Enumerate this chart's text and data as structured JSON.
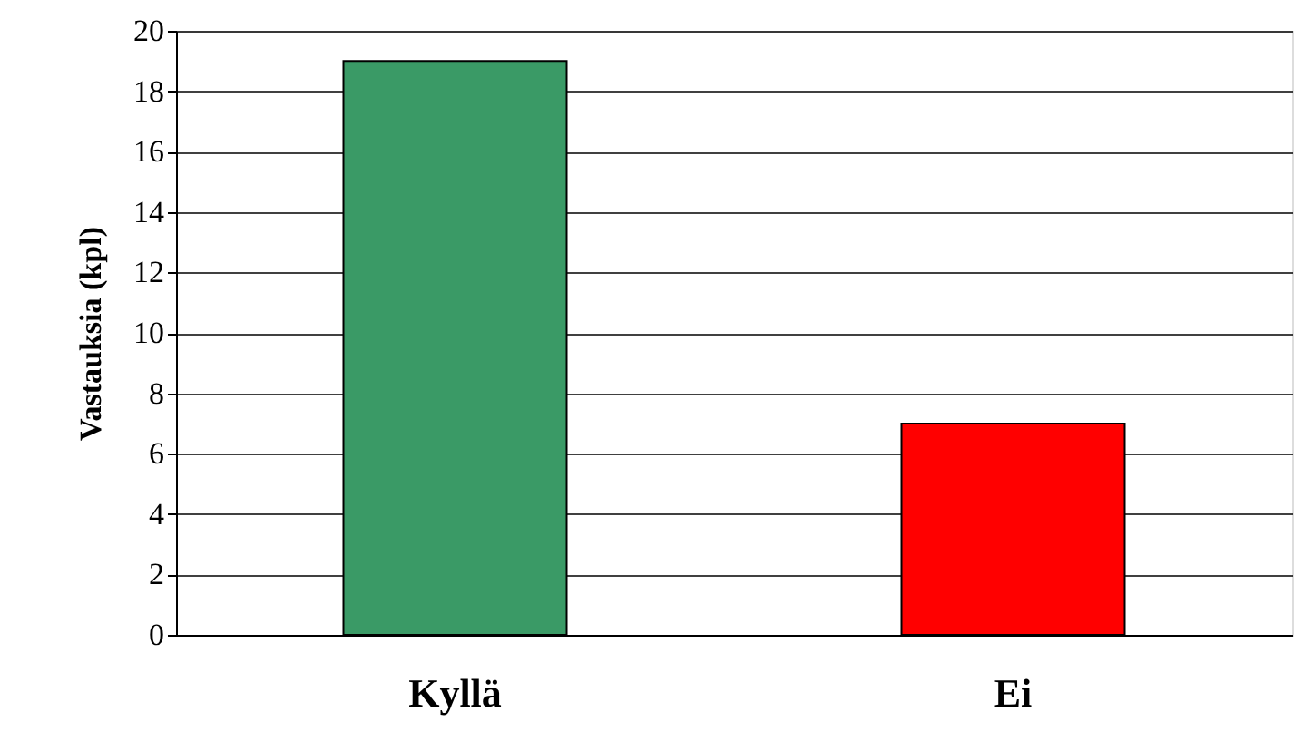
{
  "chart_data": {
    "type": "bar",
    "ylabel": "Vastauksia (kpl)",
    "categories": [
      "Kyllä",
      "Ei"
    ],
    "values": [
      19,
      7
    ],
    "colors": [
      "#3a9a66",
      "#ff0000"
    ],
    "ylim": [
      0,
      20
    ],
    "yticks": [
      0,
      2,
      4,
      6,
      8,
      10,
      12,
      14,
      16,
      18,
      20
    ],
    "grid": "y"
  }
}
